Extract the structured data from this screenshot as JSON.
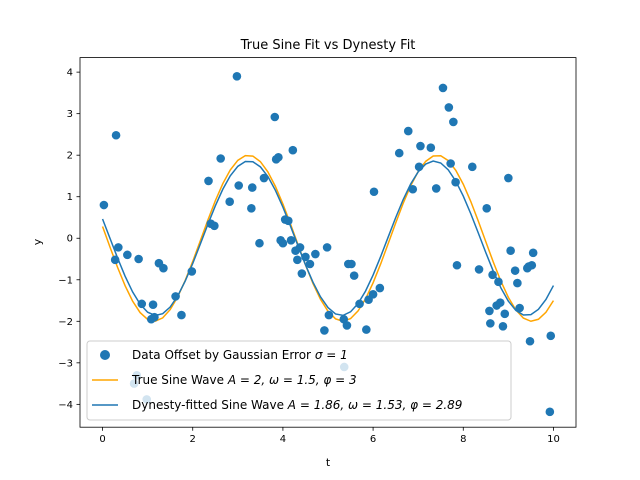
{
  "chart_data": {
    "type": "scatter",
    "title": "True Sine Fit vs Dynesty Fit",
    "xlabel": "t",
    "ylabel": "y",
    "xlim": [
      -0.5,
      10.5
    ],
    "ylim": [
      -4.55,
      4.35
    ],
    "xticks": [
      0,
      2,
      4,
      6,
      8,
      10
    ],
    "yticks": [
      -4,
      -3,
      -2,
      -1,
      0,
      1,
      2,
      3,
      4
    ],
    "grid": false,
    "legend_placement": "lower-left",
    "scatter": {
      "name": "Data Offset by Gaussian Error σ = 1",
      "color": "#1f77b4",
      "x": [
        0.03,
        0.28,
        0.3,
        0.35,
        0.55,
        0.7,
        0.76,
        0.8,
        0.87,
        0.98,
        1.08,
        1.12,
        1.15,
        1.25,
        1.35,
        1.62,
        1.75,
        1.98,
        2.35,
        2.4,
        2.48,
        2.62,
        2.82,
        2.98,
        3.02,
        3.3,
        3.32,
        3.48,
        3.58,
        3.82,
        3.85,
        3.9,
        3.95,
        4.0,
        4.05,
        4.12,
        4.18,
        4.22,
        4.28,
        4.32,
        4.38,
        4.42,
        4.5,
        4.6,
        4.72,
        4.92,
        4.98,
        5.02,
        5.35,
        5.36,
        5.42,
        5.45,
        5.52,
        5.58,
        5.7,
        5.85,
        5.9,
        6.0,
        6.02,
        6.15,
        6.58,
        6.78,
        6.88,
        7.02,
        7.05,
        7.28,
        7.4,
        7.55,
        7.68,
        7.72,
        7.78,
        7.83,
        7.86,
        8.2,
        8.35,
        8.52,
        8.58,
        8.6,
        8.65,
        8.74,
        8.78,
        8.82,
        8.88,
        8.92,
        9.0,
        9.05,
        9.15,
        9.2,
        9.25,
        9.42,
        9.45,
        9.48,
        9.52,
        9.55,
        9.92,
        9.94
      ],
      "y": [
        0.8,
        -0.52,
        2.48,
        -0.22,
        -0.4,
        -3.5,
        -3.3,
        -0.5,
        -1.58,
        -3.88,
        -1.95,
        -1.6,
        -1.9,
        -0.6,
        -0.72,
        -1.4,
        -1.85,
        -0.8,
        1.38,
        0.35,
        0.3,
        1.92,
        0.88,
        3.9,
        1.27,
        0.72,
        1.22,
        -0.12,
        1.45,
        2.92,
        1.9,
        1.95,
        -0.05,
        -0.12,
        0.45,
        0.42,
        -0.05,
        2.12,
        -0.3,
        -0.52,
        -0.22,
        -0.85,
        -0.45,
        -0.62,
        -0.38,
        -2.22,
        -0.22,
        -1.85,
        -1.95,
        -3.1,
        -2.1,
        -0.62,
        -0.62,
        -0.9,
        -1.58,
        -2.2,
        -1.48,
        -1.35,
        1.12,
        -1.2,
        2.05,
        2.58,
        1.18,
        1.72,
        2.22,
        2.18,
        1.2,
        3.62,
        3.15,
        1.8,
        2.8,
        1.35,
        -0.65,
        1.72,
        -0.75,
        0.72,
        -1.75,
        -2.05,
        -0.88,
        -1.62,
        -1.05,
        -1.55,
        -2.12,
        -1.82,
        1.45,
        -0.3,
        -0.78,
        -1.08,
        -1.68,
        -0.72,
        -0.68,
        -2.48,
        -0.65,
        -0.35,
        -4.18,
        -2.35
      ]
    },
    "series": [
      {
        "name": "True Sine Wave A = 2, ω = 1.5, φ = 3",
        "color": "#ffa500",
        "function": {
          "A": 2,
          "omega": 1.5,
          "phi": 3
        }
      },
      {
        "name": "Dynesty-fitted Sine Wave A = 1.86, ω = 1.53, φ = 2.89",
        "color": "#1f77b4",
        "function": {
          "A": 1.86,
          "omega": 1.53,
          "phi": 2.89
        }
      }
    ],
    "line_t_range": [
      0,
      10
    ]
  },
  "legend": {
    "entries": [
      {
        "key": "scatter",
        "prefix": "Data Offset by Gaussian Error ",
        "math": "σ = 1"
      },
      {
        "key": "true",
        "prefix": "True Sine Wave ",
        "math": "A = 2, ω = 1.5, φ = 3"
      },
      {
        "key": "fit",
        "prefix": "Dynesty-fitted Sine Wave ",
        "math": "A = 1.86, ω = 1.53, φ = 2.89"
      }
    ]
  }
}
